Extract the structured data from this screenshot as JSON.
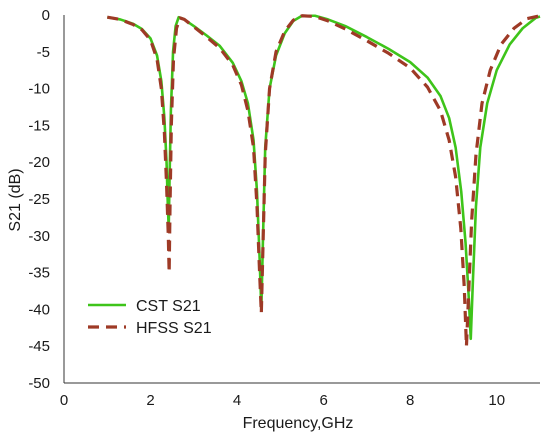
{
  "chart_data": {
    "type": "line",
    "xlabel": "Frequency,GHz",
    "ylabel": "S21 (dB)",
    "xlim": [
      0,
      11
    ],
    "ylim": [
      -50,
      0
    ],
    "x_ticks": [
      "0",
      "2",
      "4",
      "6",
      "8",
      "10"
    ],
    "y_ticks": [
      "0",
      "-5",
      "-10",
      "-15",
      "-20",
      "-25",
      "-30",
      "-35",
      "-40",
      "-45",
      "-50"
    ],
    "grid": false,
    "legend_position": "bottom-left",
    "series": [
      {
        "name": "CST S21",
        "color": "#3ec41a",
        "dash": "solid",
        "points": [
          [
            1.0,
            -0.3
          ],
          [
            1.3,
            -0.6
          ],
          [
            1.6,
            -1.2
          ],
          [
            1.8,
            -1.9
          ],
          [
            2.0,
            -3.2
          ],
          [
            2.15,
            -5.5
          ],
          [
            2.25,
            -9
          ],
          [
            2.32,
            -14
          ],
          [
            2.37,
            -20
          ],
          [
            2.4,
            -26
          ],
          [
            2.42,
            -29
          ],
          [
            2.44,
            -22
          ],
          [
            2.47,
            -13
          ],
          [
            2.52,
            -5
          ],
          [
            2.58,
            -1.5
          ],
          [
            2.65,
            -0.3
          ],
          [
            2.75,
            -0.5
          ],
          [
            3.0,
            -1.5
          ],
          [
            3.3,
            -2.8
          ],
          [
            3.6,
            -4.2
          ],
          [
            3.9,
            -6.5
          ],
          [
            4.1,
            -9
          ],
          [
            4.25,
            -12
          ],
          [
            4.38,
            -17
          ],
          [
            4.46,
            -24
          ],
          [
            4.52,
            -33
          ],
          [
            4.56,
            -40
          ],
          [
            4.6,
            -30
          ],
          [
            4.65,
            -18
          ],
          [
            4.75,
            -10
          ],
          [
            4.9,
            -5.5
          ],
          [
            5.1,
            -2.5
          ],
          [
            5.3,
            -0.8
          ],
          [
            5.5,
            -0.1
          ],
          [
            5.8,
            -0.1
          ],
          [
            6.1,
            -0.6
          ],
          [
            6.5,
            -1.5
          ],
          [
            7.0,
            -3.0
          ],
          [
            7.5,
            -4.6
          ],
          [
            8.0,
            -6.4
          ],
          [
            8.4,
            -8.5
          ],
          [
            8.7,
            -11
          ],
          [
            8.9,
            -14
          ],
          [
            9.05,
            -18
          ],
          [
            9.18,
            -24
          ],
          [
            9.28,
            -31
          ],
          [
            9.35,
            -38
          ],
          [
            9.4,
            -44
          ],
          [
            9.45,
            -36
          ],
          [
            9.52,
            -26
          ],
          [
            9.62,
            -18
          ],
          [
            9.78,
            -12
          ],
          [
            10.0,
            -7.5
          ],
          [
            10.3,
            -4
          ],
          [
            10.6,
            -1.8
          ],
          [
            10.9,
            -0.4
          ],
          [
            11.0,
            -0.2
          ]
        ]
      },
      {
        "name": "HFSS S21",
        "color": "#9e3a26",
        "dash": "dashed",
        "points": [
          [
            1.0,
            -0.3
          ],
          [
            1.3,
            -0.6
          ],
          [
            1.6,
            -1.3
          ],
          [
            1.8,
            -2.0
          ],
          [
            2.0,
            -3.4
          ],
          [
            2.15,
            -6
          ],
          [
            2.25,
            -10
          ],
          [
            2.32,
            -16
          ],
          [
            2.37,
            -23
          ],
          [
            2.41,
            -30
          ],
          [
            2.43,
            -35
          ],
          [
            2.45,
            -26
          ],
          [
            2.48,
            -15
          ],
          [
            2.53,
            -6
          ],
          [
            2.6,
            -1.8
          ],
          [
            2.68,
            -0.4
          ],
          [
            2.78,
            -0.6
          ],
          [
            3.0,
            -1.6
          ],
          [
            3.3,
            -3.0
          ],
          [
            3.6,
            -4.5
          ],
          [
            3.9,
            -6.8
          ],
          [
            4.1,
            -9.5
          ],
          [
            4.25,
            -13
          ],
          [
            4.38,
            -18
          ],
          [
            4.46,
            -26
          ],
          [
            4.52,
            -35
          ],
          [
            4.56,
            -40.5
          ],
          [
            4.6,
            -31
          ],
          [
            4.65,
            -19
          ],
          [
            4.75,
            -10
          ],
          [
            4.9,
            -5
          ],
          [
            5.1,
            -2.2
          ],
          [
            5.3,
            -0.7
          ],
          [
            5.5,
            -0.1
          ],
          [
            5.8,
            -0.2
          ],
          [
            6.1,
            -0.8
          ],
          [
            6.5,
            -1.9
          ],
          [
            7.0,
            -3.5
          ],
          [
            7.5,
            -5.2
          ],
          [
            8.0,
            -7.2
          ],
          [
            8.4,
            -9.8
          ],
          [
            8.7,
            -13
          ],
          [
            8.9,
            -17
          ],
          [
            9.05,
            -22
          ],
          [
            9.17,
            -29
          ],
          [
            9.25,
            -37
          ],
          [
            9.3,
            -45
          ],
          [
            9.35,
            -38
          ],
          [
            9.42,
            -28
          ],
          [
            9.52,
            -19
          ],
          [
            9.66,
            -12
          ],
          [
            9.85,
            -7.5
          ],
          [
            10.1,
            -4
          ],
          [
            10.4,
            -1.8
          ],
          [
            10.7,
            -0.5
          ],
          [
            11.0,
            -0.1
          ]
        ]
      }
    ]
  }
}
